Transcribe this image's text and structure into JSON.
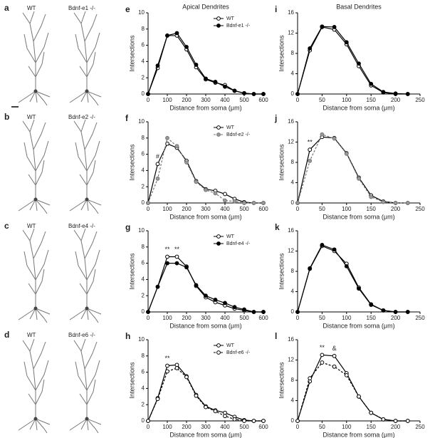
{
  "neurons": [
    {
      "letter": "a",
      "wt": "WT",
      "ko": "Bdnf-e1 -/-"
    },
    {
      "letter": "b",
      "wt": "WT",
      "ko": "Bdnf-e2 -/-"
    },
    {
      "letter": "c",
      "wt": "WT",
      "ko": "Bdnf-e4 -/-"
    },
    {
      "letter": "d",
      "wt": "WT",
      "ko": "Bdnf-e6 -/-"
    }
  ],
  "chart_data": [
    {
      "type": "line",
      "letter": "e",
      "title": "Apical Dendrites",
      "xlabel": "Distance from soma (μm)",
      "ylabel": "Intersections",
      "x": [
        0,
        50,
        100,
        150,
        200,
        250,
        300,
        350,
        400,
        450,
        500,
        550,
        600
      ],
      "xlim": [
        0,
        600
      ],
      "xticks": [
        0,
        100,
        200,
        300,
        400,
        500,
        600
      ],
      "ylim": [
        0,
        10
      ],
      "yticks": [
        0,
        2,
        4,
        6,
        8,
        10
      ],
      "legend": "upper right",
      "series": [
        {
          "name": "WT",
          "color": "#000000",
          "fill": "#ffffff",
          "dash": false,
          "values": [
            0,
            3.2,
            7.2,
            7.2,
            5.5,
            3.3,
            1.8,
            1.4,
            1.1,
            0.4,
            0.1,
            0,
            0
          ]
        },
        {
          "name": "Bdnf-e1 -/-",
          "color": "#000000",
          "fill": "#000000",
          "dash": false,
          "values": [
            0,
            3.5,
            7.2,
            7.5,
            5.8,
            3.6,
            1.9,
            1.5,
            0.9,
            0.4,
            0.1,
            0,
            0
          ]
        }
      ]
    },
    {
      "type": "line",
      "letter": "f",
      "xlabel": "Distance from soma (μm)",
      "ylabel": "Intersections",
      "x": [
        0,
        50,
        100,
        150,
        200,
        250,
        300,
        350,
        400,
        450,
        500,
        550,
        600
      ],
      "xlim": [
        0,
        600
      ],
      "xticks": [
        0,
        100,
        200,
        300,
        400,
        500,
        600
      ],
      "ylim": [
        0,
        10
      ],
      "yticks": [
        0,
        2,
        4,
        6,
        8,
        10
      ],
      "legend": "upper right",
      "annotations": [
        {
          "text": "#",
          "x": 50
        }
      ],
      "series": [
        {
          "name": "WT",
          "color": "#000000",
          "fill": "#ffffff",
          "dash": false,
          "values": [
            0,
            4.8,
            7.3,
            6.8,
            5.2,
            2.7,
            1.7,
            1.5,
            1.1,
            0.5,
            0.1,
            0,
            0
          ]
        },
        {
          "name": "Bdnf-e2 -/-",
          "color": "#777777",
          "fill": "#999999",
          "dash": true,
          "values": [
            0,
            3,
            8,
            7,
            5,
            2.6,
            1.6,
            1.2,
            0.3,
            0.2,
            0,
            0,
            0
          ]
        }
      ]
    },
    {
      "type": "line",
      "letter": "g",
      "xlabel": "Distance from soma (μm)",
      "ylabel": "Intersections",
      "x": [
        0,
        50,
        100,
        150,
        200,
        250,
        300,
        350,
        400,
        450,
        500,
        550,
        600
      ],
      "xlim": [
        0,
        600
      ],
      "xticks": [
        0,
        100,
        200,
        300,
        400,
        500,
        600
      ],
      "ylim": [
        0,
        10
      ],
      "yticks": [
        0,
        2,
        4,
        6,
        8,
        10
      ],
      "legend": "upper right",
      "annotations": [
        {
          "text": "**",
          "x": 100
        },
        {
          "text": "**",
          "x": 150
        }
      ],
      "series": [
        {
          "name": "WT",
          "color": "#000000",
          "fill": "#ffffff",
          "dash": false,
          "values": [
            0,
            3.1,
            6.8,
            6.8,
            5.6,
            3.2,
            1.8,
            1.2,
            0.8,
            0.4,
            0.2,
            0,
            0
          ]
        },
        {
          "name": "Bdnf-e4 -/-",
          "color": "#000000",
          "fill": "#000000",
          "dash": false,
          "values": [
            0,
            3.1,
            6,
            6,
            5.5,
            3.3,
            2,
            1.5,
            1.1,
            0.6,
            0.3,
            0,
            0
          ]
        }
      ]
    },
    {
      "type": "line",
      "letter": "h",
      "xlabel": "Distance from soma (μm)",
      "ylabel": "Intersections",
      "x": [
        0,
        50,
        100,
        150,
        200,
        250,
        300,
        350,
        400,
        450,
        500,
        550,
        600
      ],
      "xlim": [
        0,
        600
      ],
      "xticks": [
        0,
        100,
        200,
        300,
        400,
        500,
        600
      ],
      "ylim": [
        0,
        10
      ],
      "yticks": [
        0,
        2,
        4,
        6,
        8,
        10
      ],
      "legend": "upper right",
      "annotations": [
        {
          "text": "**",
          "x": 100
        }
      ],
      "series": [
        {
          "name": "WT",
          "color": "#000000",
          "fill": "#ffffff",
          "dash": false,
          "values": [
            0,
            2.8,
            6.8,
            6.9,
            5.5,
            3.2,
            1.8,
            1.3,
            1,
            0.5,
            0.1,
            0,
            0
          ]
        },
        {
          "name": "Bdnf-e6 -/-",
          "color": "#000000",
          "fill": "#ffffff",
          "dash": true,
          "values": [
            0,
            2.7,
            6.1,
            6.5,
            5.4,
            3.1,
            1.7,
            1.2,
            0.6,
            0.2,
            0,
            0,
            0
          ]
        }
      ]
    },
    {
      "type": "line",
      "letter": "i",
      "title": "Basal Dendrites",
      "xlabel": "Distance from soma (μm)",
      "ylabel": "Intersections",
      "x": [
        0,
        25,
        50,
        75,
        100,
        125,
        150,
        175,
        200,
        225
      ],
      "xlim": [
        0,
        250
      ],
      "xticks": [
        0,
        50,
        100,
        150,
        200,
        250
      ],
      "ylim": [
        0,
        16
      ],
      "yticks": [
        0,
        4,
        8,
        12,
        16
      ],
      "series": [
        {
          "name": "WT",
          "color": "#000000",
          "fill": "#ffffff",
          "dash": false,
          "values": [
            0,
            8.6,
            13.2,
            12.7,
            9.8,
            5.5,
            1.7,
            0.3,
            0,
            0
          ]
        },
        {
          "name": "Bdnf-e1 -/-",
          "color": "#000000",
          "fill": "#000000",
          "dash": false,
          "values": [
            0,
            9,
            13.3,
            13.2,
            10.2,
            6,
            2,
            0.4,
            0.1,
            0
          ]
        }
      ]
    },
    {
      "type": "line",
      "letter": "j",
      "xlabel": "Distance from soma (μm)",
      "ylabel": "Intersections",
      "x": [
        0,
        25,
        50,
        75,
        100,
        125,
        150,
        175,
        200,
        225
      ],
      "xlim": [
        0,
        250
      ],
      "xticks": [
        0,
        50,
        100,
        150,
        200,
        250
      ],
      "ylim": [
        0,
        16
      ],
      "yticks": [
        0,
        4,
        8,
        12,
        16
      ],
      "annotations": [
        {
          "text": "**",
          "x": 25
        }
      ],
      "series": [
        {
          "name": "WT",
          "color": "#000000",
          "fill": "#ffffff",
          "dash": false,
          "values": [
            0,
            10.5,
            13,
            12.8,
            9.8,
            5,
            1.5,
            0.3,
            0,
            0
          ]
        },
        {
          "name": "Bdnf-e2 -/-",
          "color": "#777777",
          "fill": "#999999",
          "dash": true,
          "values": [
            0,
            8.3,
            13.5,
            12.7,
            9.7,
            4.8,
            1.2,
            0.2,
            0,
            0
          ]
        }
      ]
    },
    {
      "type": "line",
      "letter": "k",
      "xlabel": "Distance from soma (μm)",
      "ylabel": "Intersections",
      "x": [
        0,
        25,
        50,
        75,
        100,
        125,
        150,
        175,
        200,
        225
      ],
      "xlim": [
        0,
        250
      ],
      "xticks": [
        0,
        50,
        100,
        150,
        200,
        250
      ],
      "ylim": [
        0,
        16
      ],
      "yticks": [
        0,
        4,
        8,
        12,
        16
      ],
      "series": [
        {
          "name": "WT",
          "color": "#000000",
          "fill": "#ffffff",
          "dash": false,
          "values": [
            0,
            8.5,
            13,
            12,
            9.5,
            4.8,
            1.5,
            0.3,
            0,
            0
          ]
        },
        {
          "name": "Bdnf-e4 -/-",
          "color": "#000000",
          "fill": "#000000",
          "dash": false,
          "values": [
            0,
            8.6,
            13.2,
            12.3,
            9,
            4.6,
            1.4,
            0.3,
            0,
            0
          ]
        }
      ]
    },
    {
      "type": "line",
      "letter": "l",
      "xlabel": "Distance from soma (μm)",
      "ylabel": "Intersections",
      "x": [
        0,
        25,
        50,
        75,
        100,
        125,
        150,
        175,
        200,
        225
      ],
      "xlim": [
        0,
        250
      ],
      "xticks": [
        0,
        50,
        100,
        150,
        200,
        250
      ],
      "ylim": [
        0,
        16
      ],
      "yticks": [
        0,
        4,
        8,
        12,
        16
      ],
      "annotations": [
        {
          "text": "**",
          "x": 50
        },
        {
          "text": "&",
          "x": 75
        }
      ],
      "series": [
        {
          "name": "WT",
          "color": "#000000",
          "fill": "#ffffff",
          "dash": false,
          "values": [
            0,
            7.8,
            13,
            12.8,
            9.4,
            4.8,
            1.6,
            0.3,
            0,
            0
          ]
        },
        {
          "name": "Bdnf-e6 -/-",
          "color": "#000000",
          "fill": "#ffffff",
          "dash": true,
          "values": [
            0,
            8.4,
            11.5,
            10.7,
            9,
            4.8,
            1.6,
            0.3,
            0,
            0
          ]
        }
      ]
    }
  ]
}
